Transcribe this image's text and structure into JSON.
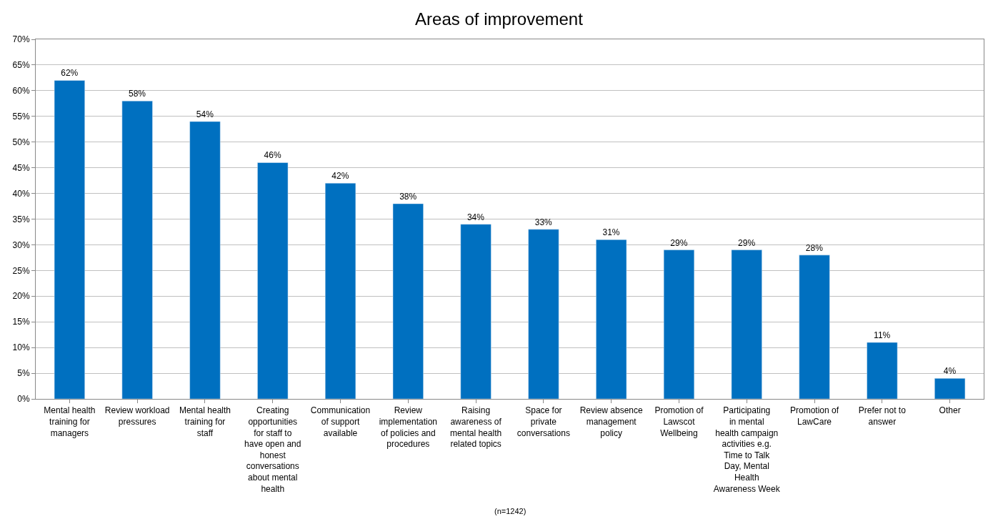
{
  "chart_data": {
    "type": "bar",
    "title": "Areas of improvement",
    "categories": [
      "Mental health training for managers",
      "Review workload pressures",
      "Mental health training for staff",
      "Creating opportunities for staff to have open and honest conversations about mental health",
      "Communication of support available",
      "Review implementation of policies and procedures",
      "Raising awareness of mental health related topics",
      "Space for private conversations",
      "Review absence management policy",
      "Promotion of Lawscot Wellbeing",
      "Participating in mental health campaign activities e.g. Time to Talk Day, Mental Health Awareness Week",
      "Promotion of LawCare",
      "Prefer not to answer",
      "Other"
    ],
    "values": [
      62,
      58,
      54,
      46,
      42,
      38,
      34,
      33,
      31,
      29,
      29,
      28,
      11,
      4
    ],
    "value_labels": [
      "62%",
      "58%",
      "54%",
      "46%",
      "42%",
      "38%",
      "34%",
      "33%",
      "31%",
      "29%",
      "29%",
      "28%",
      "11%",
      "4%"
    ],
    "color": "#0070c0",
    "ylim": [
      0,
      70
    ],
    "yticks": [
      {
        "value": 0,
        "label": "0%"
      },
      {
        "value": 5,
        "label": "5%"
      },
      {
        "value": 10,
        "label": "10%"
      },
      {
        "value": 15,
        "label": "15%"
      },
      {
        "value": 20,
        "label": "20%"
      },
      {
        "value": 25,
        "label": "25%"
      },
      {
        "value": 30,
        "label": "30%"
      },
      {
        "value": 35,
        "label": "35%"
      },
      {
        "value": 40,
        "label": "40%"
      },
      {
        "value": 45,
        "label": "45%"
      },
      {
        "value": 50,
        "label": "50%"
      },
      {
        "value": 55,
        "label": "55%"
      },
      {
        "value": 60,
        "label": "60%"
      },
      {
        "value": 65,
        "label": "65%"
      },
      {
        "value": 70,
        "label": "70%"
      }
    ],
    "grid": "y",
    "legend": false,
    "annotations": [
      "(n=1242)"
    ]
  }
}
